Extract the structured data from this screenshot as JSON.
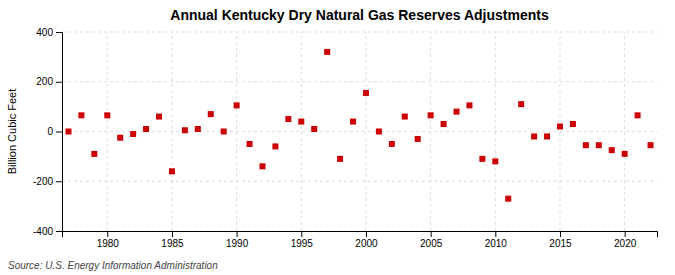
{
  "chart_data": {
    "type": "scatter",
    "title": "Annual Kentucky Dry Natural Gas Reserves Adjustments",
    "ylabel": "Billion Cubic Feet",
    "annotation": "Source: U.S. Energy Information Administration",
    "x": [
      1977,
      1978,
      1979,
      1980,
      1981,
      1982,
      1983,
      1984,
      1985,
      1986,
      1987,
      1988,
      1989,
      1990,
      1991,
      1992,
      1993,
      1994,
      1995,
      1996,
      1997,
      1998,
      1999,
      2000,
      2001,
      2002,
      2003,
      2004,
      2005,
      2006,
      2007,
      2008,
      2009,
      2010,
      2011,
      2012,
      2013,
      2014,
      2015,
      2016,
      2017,
      2018,
      2019,
      2020,
      2021,
      2022
    ],
    "values": [
      0,
      65,
      -90,
      65,
      -25,
      -10,
      10,
      60,
      -160,
      5,
      10,
      70,
      0,
      105,
      -50,
      -140,
      -60,
      50,
      40,
      10,
      320,
      -110,
      40,
      155,
      0,
      -50,
      60,
      -30,
      65,
      30,
      80,
      105,
      -110,
      -120,
      -270,
      110,
      -20,
      -20,
      20,
      30,
      -55,
      -55,
      -75,
      -90,
      65,
      -55
    ],
    "color": "#cc0000",
    "marker": "square",
    "xlim": [
      1976.5,
      2022.5
    ],
    "xticks": [
      1980,
      1985,
      1990,
      1995,
      2000,
      2005,
      2010,
      2015,
      2020
    ],
    "ylim": [
      -400,
      400
    ],
    "yticks": [
      -400,
      -200,
      0,
      200,
      400
    ],
    "grid": true
  }
}
